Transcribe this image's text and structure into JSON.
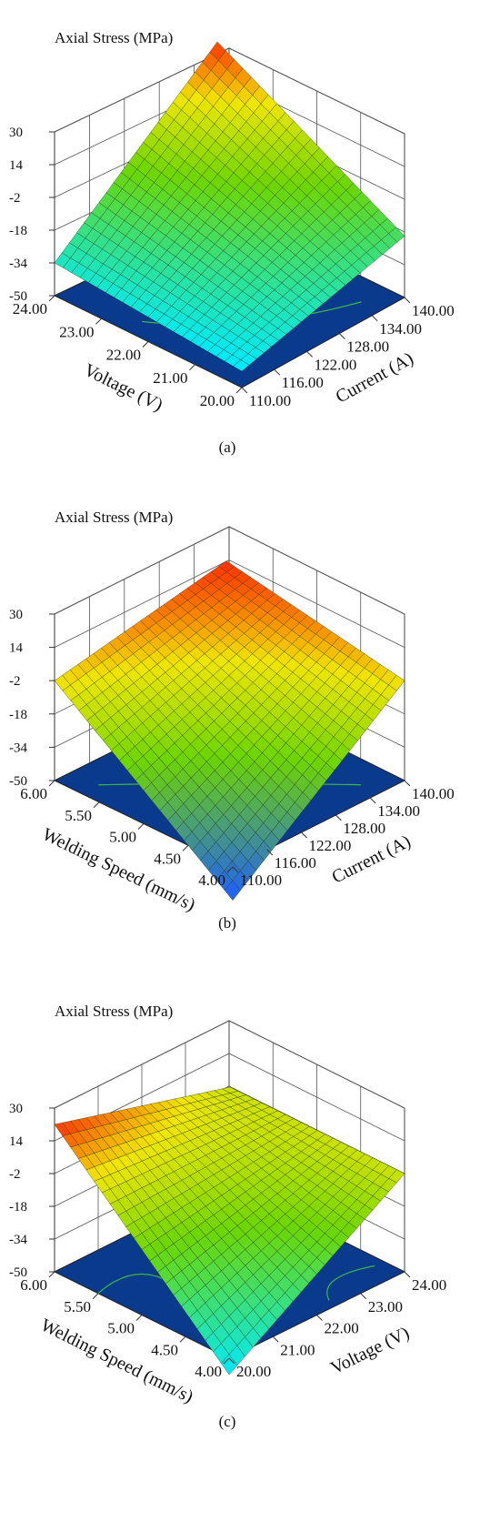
{
  "chart_data": [
    {
      "type": "surface3d",
      "panel_label": "(a)",
      "z_title": "Axial Stress (MPa)",
      "z_ticks": [
        "30",
        "14",
        "-2",
        "-18",
        "-34",
        "-50"
      ],
      "zlim": [
        -50,
        30
      ],
      "left_axis": {
        "label": "Voltage (V)",
        "ticks": [
          "24.00",
          "23.00",
          "22.00",
          "21.00",
          "20.00"
        ],
        "range": [
          20,
          24
        ]
      },
      "right_axis": {
        "label": "Current (A)",
        "ticks": [
          "110.00",
          "116.00",
          "122.00",
          "128.00",
          "134.00",
          "140.00"
        ],
        "range": [
          110,
          140
        ]
      },
      "corner_z": {
        "front": -42,
        "left": -34,
        "back": 30,
        "right": -20
      },
      "surface_colors": {
        "low": "#00eaff",
        "mid": "#6fd600",
        "high": "#ff3000"
      },
      "floor_color": "#0a3a8c",
      "contour_color": "#3fb44a"
    },
    {
      "type": "surface3d",
      "panel_label": "(b)",
      "z_title": "Axial Stress (MPa)",
      "z_ticks": [
        "30",
        "14",
        "-2",
        "-18",
        "-34",
        "-50"
      ],
      "zlim": [
        -50,
        30
      ],
      "left_axis": {
        "label": "Welding Speed (mm/s)",
        "ticks": [
          "6.00",
          "5.50",
          "5.00",
          "4.50",
          "4.00"
        ],
        "range": [
          4,
          6
        ]
      },
      "right_axis": {
        "label": "Current (A)",
        "ticks": [
          "110.00",
          "116.00",
          "122.00",
          "128.00",
          "134.00",
          "140.00"
        ],
        "range": [
          110,
          140
        ]
      },
      "corner_z": {
        "front": -66,
        "left": -2,
        "back": 14,
        "right": -2
      },
      "surface_colors": {
        "low": "#1e5cff",
        "mid": "#6fd600",
        "high": "#ff3000"
      },
      "floor_color": "#0a3a8c",
      "contour_color": "#3fb44a"
    },
    {
      "type": "surface3d",
      "panel_label": "(c)",
      "z_title": "Axial Stress (MPa)",
      "z_ticks": [
        "30",
        "14",
        "-2",
        "-18",
        "-34",
        "-50"
      ],
      "zlim": [
        -50,
        30
      ],
      "left_axis": {
        "label": "Welding Speed (mm/s)",
        "ticks": [
          "6.00",
          "5.50",
          "5.00",
          "4.50",
          "4.00"
        ],
        "range": [
          4,
          6
        ]
      },
      "right_axis": {
        "label": "Voltage (V)",
        "ticks": [
          "20.00",
          "21.00",
          "22.00",
          "23.00",
          "24.00"
        ],
        "range": [
          20,
          24
        ]
      },
      "corner_z": {
        "front": -58,
        "left": 22,
        "back": -2,
        "right": -2
      },
      "surface_colors": {
        "low": "#00eaff",
        "mid": "#6fd600",
        "high": "#ff3000"
      },
      "floor_color": "#0a3a8c",
      "contour_color": "#3fb44a"
    }
  ]
}
